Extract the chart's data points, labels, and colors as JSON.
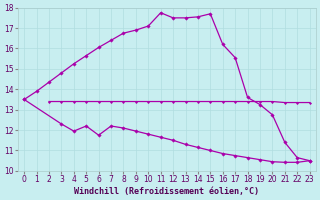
{
  "xlabel": "Windchill (Refroidissement éolien,°C)",
  "background_color": "#c8eef0",
  "grid_color": "#b0dde0",
  "line_color": "#aa00aa",
  "xlim": [
    -0.5,
    23.5
  ],
  "ylim": [
    10,
    18
  ],
  "xticks": [
    0,
    1,
    2,
    3,
    4,
    5,
    6,
    7,
    8,
    9,
    10,
    11,
    12,
    13,
    14,
    15,
    16,
    17,
    18,
    19,
    20,
    21,
    22,
    23
  ],
  "yticks": [
    10,
    11,
    12,
    13,
    14,
    15,
    16,
    17,
    18
  ],
  "line1_x": [
    0,
    1,
    2,
    3,
    4,
    5,
    6,
    7,
    8,
    9,
    10,
    11,
    12,
    13,
    14,
    15,
    16,
    17,
    18,
    19,
    20,
    21,
    22,
    23
  ],
  "line1_y": [
    13.5,
    13.9,
    14.35,
    14.8,
    15.25,
    15.65,
    16.05,
    16.4,
    16.75,
    16.9,
    17.1,
    17.75,
    17.5,
    17.5,
    17.55,
    17.7,
    16.2,
    15.55,
    13.6,
    13.25,
    12.75,
    11.4,
    10.65,
    10.5
  ],
  "line2_x": [
    2,
    3,
    4,
    5,
    6,
    7,
    8,
    9,
    10,
    11,
    12,
    13,
    14,
    15,
    16,
    17,
    18,
    19,
    20,
    21,
    22,
    23
  ],
  "line2_y": [
    13.4,
    13.4,
    13.4,
    13.4,
    13.4,
    13.4,
    13.4,
    13.4,
    13.4,
    13.4,
    13.4,
    13.4,
    13.4,
    13.4,
    13.4,
    13.4,
    13.4,
    13.4,
    13.4,
    13.35,
    13.35,
    13.35
  ],
  "line3_x": [
    0,
    3,
    4,
    5,
    6,
    7,
    8,
    9,
    10,
    11,
    12,
    13,
    14,
    15,
    16,
    17,
    18,
    19,
    20,
    21,
    22,
    23
  ],
  "line3_y": [
    13.5,
    12.3,
    11.95,
    12.2,
    11.75,
    12.2,
    12.1,
    11.95,
    11.8,
    11.65,
    11.5,
    11.3,
    11.15,
    11.0,
    10.85,
    10.75,
    10.65,
    10.55,
    10.45,
    10.42,
    10.42,
    10.5
  ],
  "tick_fontsize": 5.5,
  "label_fontsize": 6.0
}
